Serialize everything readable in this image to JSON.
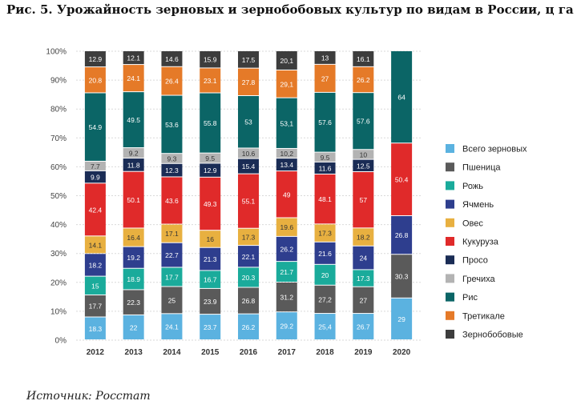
{
  "title": "Рис. 5. Урожайность зерновых и зернобобовых культур по видам в России, ц га",
  "source": "Источник: Росстат",
  "chart_data": {
    "type": "bar",
    "stacked": true,
    "title": "Рис. 5. Урожайность зерновых и зернобобовых культур по видам в России, ц га",
    "xlabel": "",
    "ylabel": "",
    "ylim": [
      0,
      100
    ],
    "yticks": [
      "0%",
      "10%",
      "20%",
      "30%",
      "40%",
      "50%",
      "60%",
      "70%",
      "80%",
      "90%",
      "100%"
    ],
    "grid": true,
    "legend_position": "right",
    "categories": [
      "2012",
      "2013",
      "2014",
      "2015",
      "2016",
      "2017",
      "2018",
      "2019",
      "2020"
    ],
    "series": [
      {
        "name": "Всего зерновых",
        "color": "#5bb2e0",
        "values": [
          "18.3",
          "22",
          "24.1",
          "23.7",
          "26.2",
          "29.2",
          "25,4",
          "26.7",
          "29"
        ]
      },
      {
        "name": "Пшеница",
        "color": "#5a5a5a",
        "values": [
          "17.7",
          "22.3",
          "25",
          "23.9",
          "26.8",
          "31.2",
          "27,2",
          "27",
          "30.3"
        ]
      },
      {
        "name": "Рожь",
        "color": "#1aab9b",
        "values": [
          "15",
          "18.9",
          "17.7",
          "16.7",
          "20.3",
          "21.7",
          "20",
          "17.3",
          null
        ]
      },
      {
        "name": "Ячмень",
        "color": "#2e3e8e",
        "values": [
          "18.2",
          "19.2",
          "22.7",
          "21.3",
          "22.1",
          "26.2",
          "21.6",
          "24",
          "26.8"
        ]
      },
      {
        "name": "Овес",
        "color": "#e8b040",
        "values": [
          "14.1",
          "16.4",
          "17.1",
          "16",
          "17.3",
          "19.6",
          "17.3",
          "18.2",
          null
        ]
      },
      {
        "name": "Кукуруза",
        "color": "#e02a2a",
        "values": [
          "42.4",
          "50.1",
          "43.6",
          "49.3",
          "55.1",
          "49",
          "48.1",
          "57",
          "50.4"
        ]
      },
      {
        "name": "Просо",
        "color": "#1a2c55",
        "values": [
          "9.9",
          "11.8",
          "12.3",
          "12.9",
          "15.4",
          "13.4",
          "11.6",
          "12.5",
          null
        ]
      },
      {
        "name": "Гречиха",
        "color": "#b3b3b3",
        "values": [
          "7.7",
          "9.2",
          "9.3",
          "9.5",
          "10.6",
          "10,2",
          "9.5",
          "10",
          null
        ]
      },
      {
        "name": "Рис",
        "color": "#0b6566",
        "values": [
          "54.9",
          "49.5",
          "53.6",
          "55.8",
          "53",
          "53,1",
          "57.6",
          "57.6",
          "64"
        ]
      },
      {
        "name": "Третикале",
        "color": "#e57a28",
        "values": [
          "20.8",
          "24.1",
          "26.4",
          "23.1",
          "27.8",
          "29,1",
          "27",
          "26.2",
          null
        ]
      },
      {
        "name": "Зернобобовые",
        "color": "#3d3d3d",
        "values": [
          "12.9",
          "12.1",
          "14.6",
          "15.9",
          "17.5",
          "20,1",
          "13",
          "16.1",
          null
        ]
      }
    ]
  }
}
